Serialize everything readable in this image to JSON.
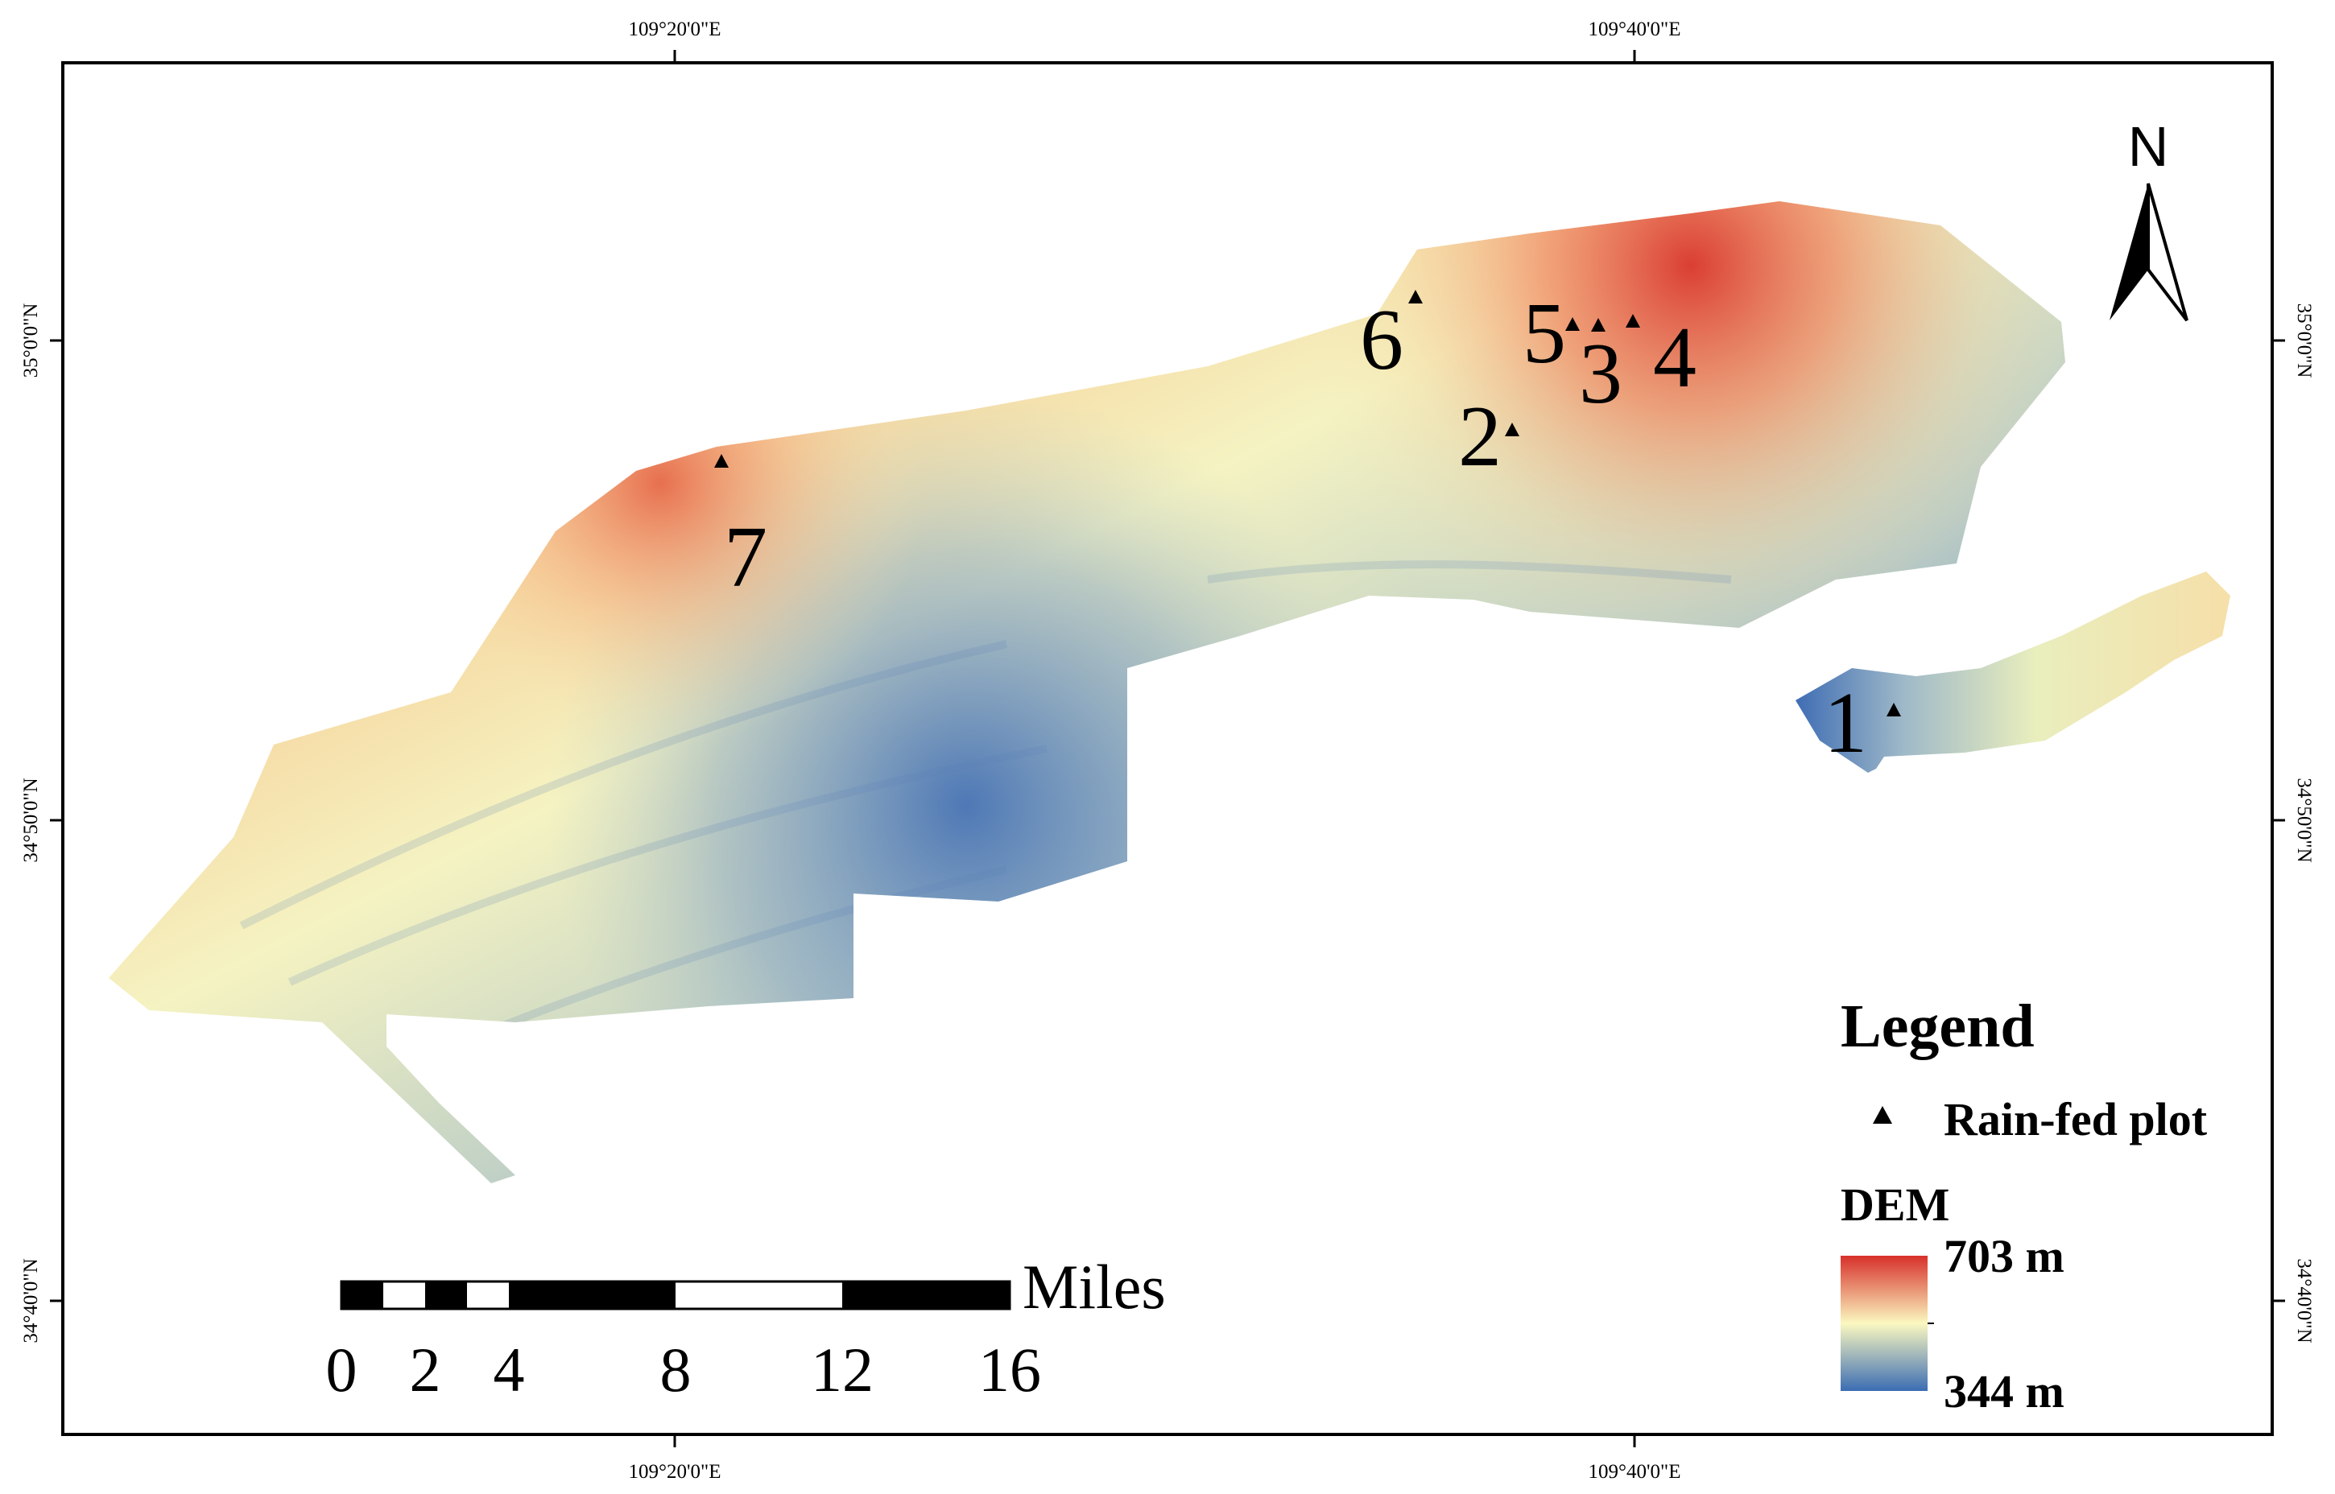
{
  "map": {
    "graticule": {
      "top": [
        "109°20'0\"E",
        "109°40'0\"E"
      ],
      "bottom": [
        "109°20'0\"E",
        "109°40'0\"E"
      ],
      "left": [
        "35°0'0\"N",
        "34°50'0\"N",
        "34°40'0\"N"
      ],
      "right": [
        "35°0'0\"N",
        "34°50'0\"N",
        "34°40'0\"N"
      ]
    },
    "plots": [
      {
        "id": "1",
        "label": "1"
      },
      {
        "id": "2",
        "label": "2"
      },
      {
        "id": "3",
        "label": "3"
      },
      {
        "id": "4",
        "label": "4"
      },
      {
        "id": "5",
        "label": "5"
      },
      {
        "id": "6",
        "label": "6"
      },
      {
        "id": "7",
        "label": "7"
      }
    ],
    "north_arrow": {
      "label": "N",
      "icon": "north-arrow-icon"
    },
    "scale_bar": {
      "unit": "Miles",
      "ticks": [
        "0",
        "2",
        "4",
        "8",
        "12",
        "16"
      ]
    },
    "legend": {
      "title": "Legend",
      "point_label": "Rain-fed plot",
      "raster_title": "DEM",
      "max_label": "703 m",
      "min_label": "344 m",
      "colors": {
        "high": "#d7302a",
        "mid": "#fbf8c0",
        "low": "#3b6db3"
      }
    },
    "colors": {
      "frame": "#000000",
      "background": "#ffffff"
    }
  }
}
